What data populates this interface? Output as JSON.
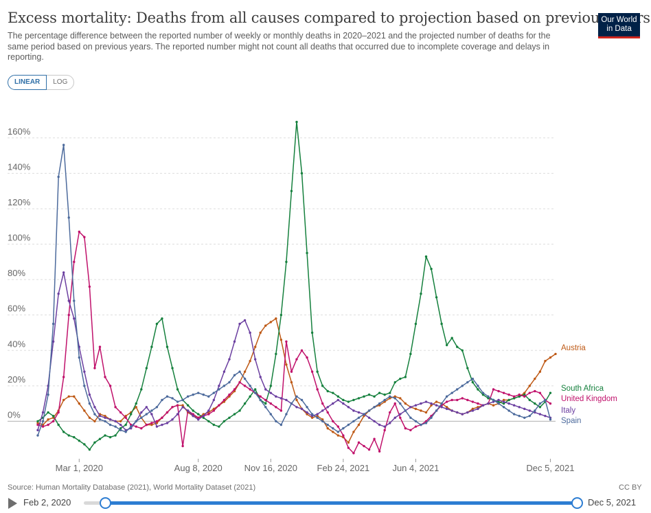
{
  "header": {
    "title": "Excess mortality: Deaths from all causes compared to projection based on previous years",
    "subtitle": "The percentage difference between the reported number of weekly or monthly deaths in 2020–2021 and the projected number of deaths for the same period based on previous years. The reported number might not count all deaths that occurred due to incomplete coverage and delays in reporting.",
    "logo_line1": "Our World",
    "logo_line2": "in Data"
  },
  "controls": {
    "linear_label": "LINEAR",
    "log_label": "LOG"
  },
  "footer": {
    "source": "Source: Human Mortality Database (2021), World Mortality Dataset (2021)",
    "license": "CC BY"
  },
  "timeline": {
    "start_label": "Feb 2, 2020",
    "end_label": "Dec 5, 2021"
  },
  "colors": {
    "grid": "#dddddd",
    "zero_line": "#b0b0b0",
    "axis_text": "#666666"
  },
  "chart_data": {
    "type": "line",
    "x_unit": "weeks since Jan 5, 2020",
    "xlim": [
      0,
      100
    ],
    "ylim": [
      -20,
      170
    ],
    "yticks": [
      0,
      20,
      40,
      60,
      80,
      100,
      120,
      140,
      160
    ],
    "ytick_labels": [
      "0%",
      "20%",
      "40%",
      "60%",
      "80%",
      "100%",
      "120%",
      "140%",
      "160%"
    ],
    "xticks": [
      {
        "x": 8,
        "label": "Mar 1, 2020"
      },
      {
        "x": 31,
        "label": "Aug 8, 2020"
      },
      {
        "x": 45,
        "label": "Nov 16, 2020"
      },
      {
        "x": 59,
        "label": "Feb 24, 2021"
      },
      {
        "x": 73,
        "label": "Jun 4, 2021"
      },
      {
        "x": 99,
        "label": "Dec 5, 2021"
      }
    ],
    "series": [
      {
        "name": "Austria",
        "label": "Austria",
        "color": "#be5915",
        "x_start": 0,
        "values": [
          -1,
          -2,
          1,
          2,
          6,
          12,
          14,
          14,
          10,
          6,
          2,
          0,
          4,
          3,
          1,
          0,
          0,
          3,
          5,
          8,
          2,
          -2,
          -2,
          -1,
          2,
          5,
          8,
          9,
          9,
          5,
          3,
          2,
          4,
          5,
          7,
          9,
          11,
          14,
          17,
          22,
          28,
          34,
          42,
          50,
          54,
          56,
          58,
          46,
          32,
          22,
          12,
          7,
          4,
          2,
          3,
          1,
          -4,
          -6,
          -8,
          -9,
          -12,
          -6,
          -2,
          3,
          6,
          8,
          9,
          11,
          13,
          14,
          13,
          10,
          8,
          7,
          6,
          5,
          9,
          11,
          10,
          8,
          6,
          5,
          4,
          5,
          7,
          8,
          9,
          10,
          9,
          10,
          12,
          12,
          13,
          14,
          16,
          20,
          24,
          28,
          34,
          36,
          38
        ],
        "ends_at_label": true
      },
      {
        "name": "South Africa",
        "label": "South Africa",
        "color": "#15803d",
        "x_start": 0,
        "values": [
          0,
          2,
          5,
          3,
          -2,
          -6,
          -8,
          -9,
          -11,
          -13,
          -16,
          -12,
          -10,
          -8,
          -9,
          -8,
          -4,
          -2,
          4,
          10,
          18,
          30,
          42,
          55,
          58,
          42,
          30,
          18,
          12,
          9,
          6,
          4,
          2,
          0,
          -2,
          -3,
          0,
          2,
          4,
          6,
          10,
          14,
          18,
          12,
          10,
          20,
          38,
          60,
          90,
          130,
          169,
          140,
          95,
          50,
          28,
          20,
          17,
          16,
          14,
          12,
          11,
          12,
          13,
          14,
          15,
          14,
          16,
          15,
          16,
          22,
          24,
          25,
          38,
          55,
          72,
          93,
          86,
          70,
          55,
          43,
          47,
          42,
          40,
          30,
          22,
          18,
          15,
          13,
          12,
          11,
          10,
          12,
          13,
          14,
          15,
          12,
          10,
          8,
          11,
          16
        ]
      },
      {
        "name": "United Kingdom",
        "label": "United Kingdom",
        "color": "#c0116b",
        "x_start": 0,
        "values": [
          -2,
          -3,
          -2,
          0,
          5,
          25,
          60,
          90,
          107,
          104,
          76,
          30,
          42,
          25,
          20,
          8,
          5,
          2,
          -2,
          -3,
          -4,
          -2,
          -1,
          0,
          2,
          5,
          8,
          9,
          -14,
          6,
          4,
          2,
          3,
          4,
          6,
          9,
          12,
          15,
          18,
          22,
          20,
          18,
          16,
          14,
          12,
          10,
          8,
          6,
          45,
          28,
          35,
          40,
          36,
          28,
          18,
          10,
          5,
          0,
          -3,
          -8,
          -15,
          -18,
          -12,
          -14,
          -16,
          -10,
          -17,
          -5,
          5,
          10,
          2,
          -4,
          -5,
          -3,
          -2,
          0,
          3,
          6,
          9,
          11,
          12,
          12,
          13,
          12,
          11,
          10,
          9,
          10,
          18,
          17,
          16,
          15,
          14,
          15,
          14,
          16,
          17,
          16,
          12,
          10
        ]
      },
      {
        "name": "Italy",
        "label": "Italy",
        "color": "#6b3fa0",
        "x_start": 0,
        "values": [
          -5,
          5,
          20,
          45,
          72,
          84,
          68,
          58,
          42,
          28,
          15,
          8,
          3,
          2,
          1,
          0,
          -2,
          -5,
          -4,
          0,
          5,
          8,
          4,
          -3,
          -2,
          -1,
          1,
          4,
          8,
          6,
          3,
          1,
          3,
          6,
          12,
          20,
          28,
          35,
          45,
          55,
          57,
          50,
          35,
          25,
          18,
          16,
          14,
          13,
          12,
          10,
          8,
          7,
          5,
          3,
          4,
          6,
          8,
          10,
          12,
          10,
          8,
          6,
          5,
          4,
          2,
          0,
          -2,
          -3,
          -1,
          2,
          4,
          6,
          8,
          9,
          10,
          11,
          10,
          9,
          8,
          7,
          6,
          5,
          4,
          5,
          6,
          7,
          9,
          10,
          11,
          12,
          11,
          10,
          9,
          8,
          7,
          6,
          5,
          4,
          3,
          2
        ]
      },
      {
        "name": "Spain",
        "label": "Spain",
        "color": "#4c6a9c",
        "x_start": 0,
        "values": [
          -8,
          0,
          15,
          55,
          138,
          156,
          115,
          68,
          36,
          20,
          10,
          4,
          1,
          0,
          -2,
          -3,
          -5,
          -6,
          -3,
          0,
          2,
          4,
          6,
          8,
          12,
          14,
          13,
          11,
          12,
          14,
          15,
          16,
          15,
          14,
          16,
          18,
          20,
          22,
          26,
          28,
          24,
          20,
          16,
          12,
          8,
          4,
          0,
          -2,
          4,
          10,
          14,
          12,
          8,
          4,
          2,
          0,
          -2,
          -4,
          -6,
          -4,
          -2,
          0,
          2,
          4,
          6,
          8,
          10,
          12,
          14,
          13,
          10,
          6,
          2,
          0,
          -2,
          -1,
          2,
          6,
          10,
          14,
          16,
          18,
          20,
          22,
          24,
          20,
          16,
          14,
          12,
          10,
          8,
          6,
          4,
          3,
          2,
          3,
          6,
          10,
          12,
          1
        ]
      }
    ]
  }
}
